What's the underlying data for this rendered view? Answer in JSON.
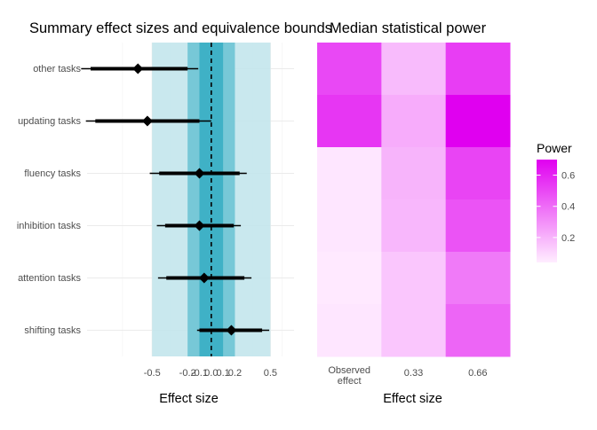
{
  "chart_data": [
    {
      "type": "forest",
      "title": "Summary effect sizes and equivalence bounds",
      "xlabel": "Effect size",
      "xlim": [
        -1.05,
        0.7
      ],
      "xticks": [
        -0.5,
        -0.2,
        -0.1,
        0.0,
        0.1,
        0.2,
        0.5
      ],
      "xtick_labels": [
        "-0.5",
        "-0.2",
        "-0.1",
        "0.0",
        "0.1",
        "0.2",
        "0.5"
      ],
      "equivalence_bands": [
        {
          "from": -0.5,
          "to": 0.5,
          "color": "#c3e5ec"
        },
        {
          "from": -0.2,
          "to": 0.2,
          "color": "#6ec4d4"
        },
        {
          "from": -0.1,
          "to": 0.1,
          "color": "#38aec4"
        }
      ],
      "reference_line": 0.0,
      "categories": [
        "other tasks",
        "updating tasks",
        "fluency tasks",
        "inhibition tasks",
        "attention tasks",
        "shifting tasks"
      ],
      "estimates": [
        {
          "category": "other tasks",
          "estimate": -0.62,
          "ci90": [
            -1.02,
            -0.2
          ],
          "ci95": [
            -1.1,
            -0.11
          ]
        },
        {
          "category": "updating tasks",
          "estimate": -0.54,
          "ci90": [
            -0.98,
            -0.1
          ],
          "ci95": [
            -1.06,
            0.0
          ]
        },
        {
          "category": "fluency tasks",
          "estimate": -0.1,
          "ci90": [
            -0.44,
            0.24
          ],
          "ci95": [
            -0.52,
            0.3
          ]
        },
        {
          "category": "inhibition tasks",
          "estimate": -0.1,
          "ci90": [
            -0.39,
            0.19
          ],
          "ci95": [
            -0.46,
            0.25
          ]
        },
        {
          "category": "attention tasks",
          "estimate": -0.06,
          "ci90": [
            -0.38,
            0.28
          ],
          "ci95": [
            -0.45,
            0.34
          ]
        },
        {
          "category": "shifting tasks",
          "estimate": 0.17,
          "ci90": [
            -0.1,
            0.43
          ],
          "ci95": [
            -0.12,
            0.49
          ]
        }
      ]
    },
    {
      "type": "heatmap",
      "title": "Median statistical power",
      "xlabel": "Effect size",
      "x_categories": [
        [
          "Observed",
          "effect"
        ],
        [
          "0.33"
        ],
        [
          "0.66"
        ]
      ],
      "y_categories": [
        "other tasks",
        "updating tasks",
        "fluency tasks",
        "inhibition tasks",
        "attention tasks",
        "shifting tasks"
      ],
      "values": [
        [
          0.5,
          0.18,
          0.53
        ],
        [
          0.55,
          0.22,
          0.7
        ],
        [
          0.06,
          0.2,
          0.51
        ],
        [
          0.06,
          0.19,
          0.47
        ],
        [
          0.05,
          0.15,
          0.36
        ],
        [
          0.06,
          0.15,
          0.42
        ]
      ],
      "legend": {
        "title": "Power",
        "min": 0.04,
        "max": 0.7,
        "ticks": [
          0.2,
          0.4,
          0.6
        ],
        "tick_labels": [
          "0.2",
          "0.4",
          "0.6"
        ],
        "low_color": "#ffedff",
        "high_color": "#e000f0",
        "placement": "right"
      }
    }
  ]
}
